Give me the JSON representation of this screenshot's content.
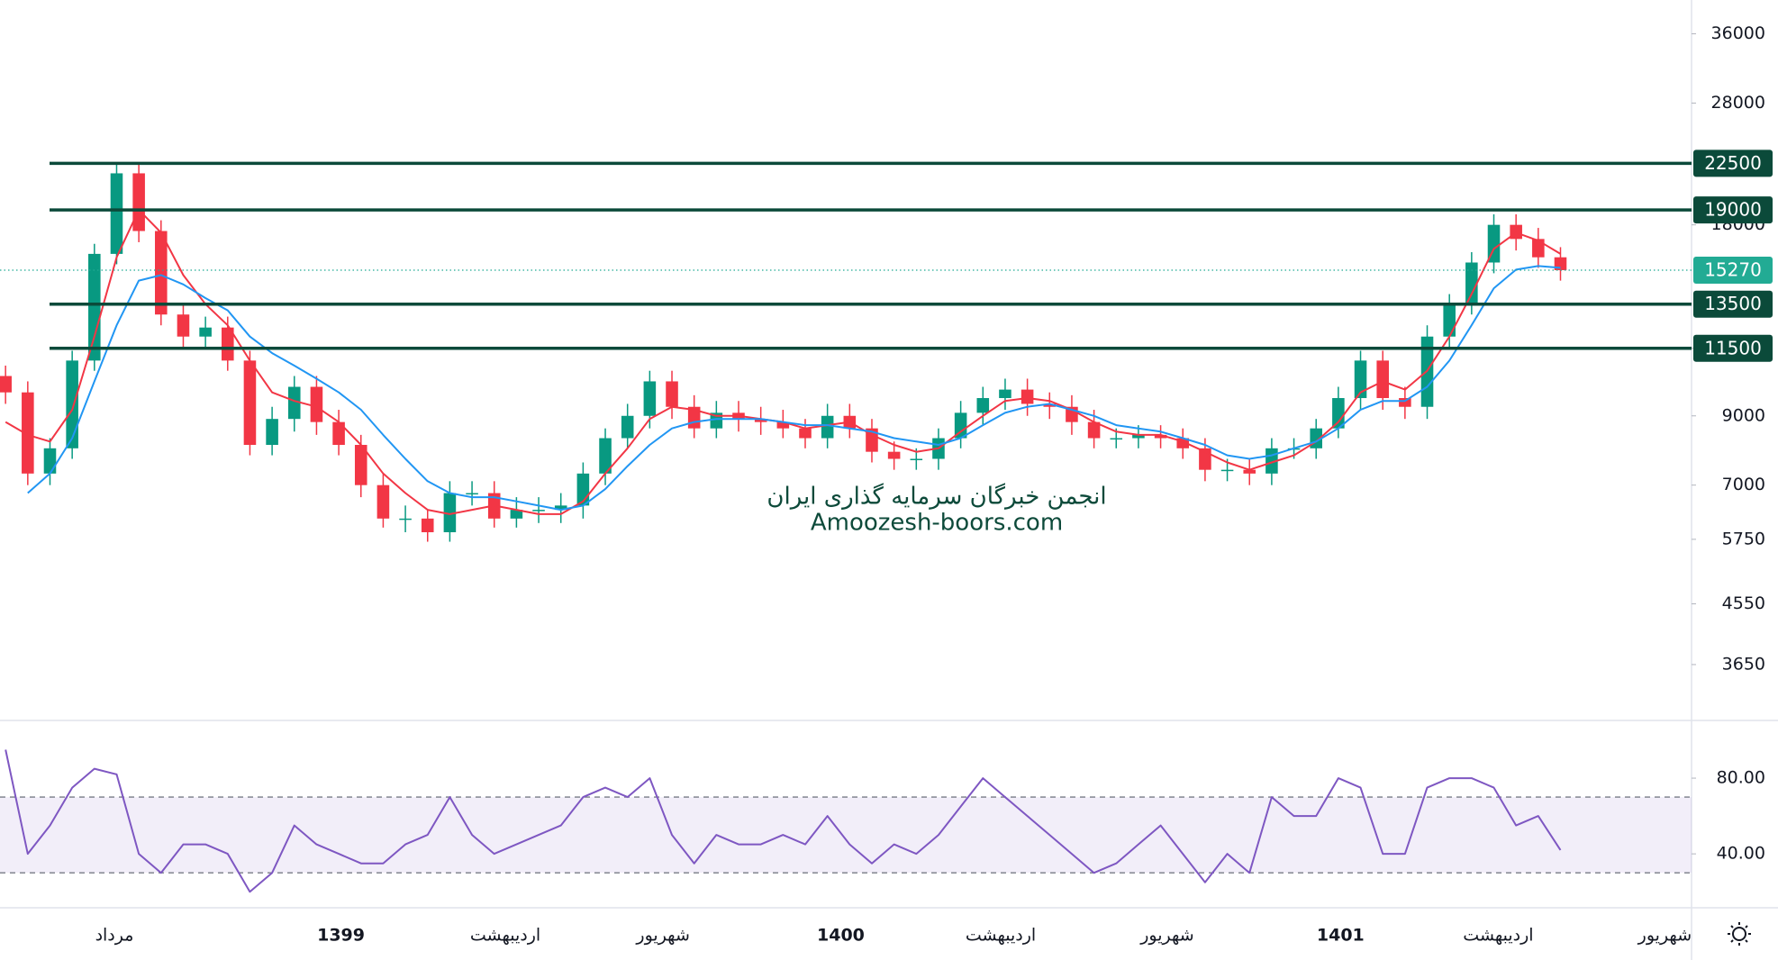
{
  "chart_data": [
    {
      "type": "candlestick",
      "watermark": [
        "انجمن خبرگان سرمایه گذاری ایران",
        "Amoozesh-boors.com"
      ],
      "x": [
        0,
        1,
        2,
        3,
        4,
        5,
        6,
        7,
        8,
        9,
        10,
        11,
        12,
        13,
        14,
        15,
        16,
        17,
        18,
        19,
        20,
        21,
        22,
        23,
        24,
        25,
        26,
        27,
        28,
        29,
        30,
        31,
        32,
        33,
        34,
        35,
        36,
        37,
        38,
        39,
        40,
        41,
        42,
        43,
        44,
        45,
        46,
        47,
        48,
        49,
        50,
        51,
        52,
        53,
        54,
        55,
        56,
        57,
        58,
        59,
        60,
        61,
        62,
        63,
        64,
        65,
        66,
        67,
        68,
        69,
        70
      ],
      "open": [
        10400,
        9800,
        7300,
        8000,
        11000,
        16200,
        21700,
        17600,
        13000,
        12000,
        12400,
        11000,
        8100,
        8900,
        10000,
        8800,
        8100,
        7000,
        6200,
        6200,
        5900,
        6800,
        6800,
        6200,
        6400,
        6400,
        6500,
        7300,
        8300,
        9000,
        10200,
        9300,
        8600,
        9100,
        8900,
        8800,
        8600,
        8300,
        9000,
        8600,
        7900,
        7700,
        7700,
        8300,
        9100,
        9600,
        9900,
        9400,
        9300,
        8800,
        8300,
        8300,
        8400,
        8300,
        8000,
        7400,
        7400,
        7300,
        8000,
        8000,
        8600,
        9600,
        11000,
        9600,
        9300,
        12000,
        13500,
        15700,
        18000,
        17100,
        16000
      ],
      "high": [
        10800,
        10200,
        8300,
        11400,
        16800,
        22500,
        22500,
        18300,
        13500,
        12900,
        12900,
        11400,
        9300,
        10400,
        10400,
        9200,
        8400,
        7300,
        6500,
        6400,
        7100,
        7100,
        7100,
        6700,
        6700,
        6800,
        7600,
        8600,
        9400,
        10600,
        10600,
        9700,
        9500,
        9500,
        9300,
        9200,
        8900,
        9400,
        9400,
        8900,
        8200,
        8000,
        8600,
        9500,
        10000,
        10300,
        10300,
        9800,
        9700,
        9200,
        8600,
        8700,
        8700,
        8600,
        8300,
        7700,
        7700,
        8300,
        8300,
        8900,
        10000,
        11400,
        11400,
        10000,
        12500,
        14000,
        16300,
        18700,
        18700,
        17800,
        16600
      ],
      "low": [
        9400,
        7000,
        7000,
        7700,
        10600,
        15600,
        16900,
        12500,
        11500,
        11500,
        10600,
        7800,
        7800,
        8500,
        8400,
        7800,
        6700,
        6000,
        5900,
        5700,
        5700,
        6500,
        6000,
        6000,
        6100,
        6100,
        6200,
        7000,
        8000,
        8600,
        8900,
        8300,
        8300,
        8500,
        8400,
        8300,
        8000,
        8000,
        8300,
        7600,
        7400,
        7400,
        7400,
        8000,
        8700,
        9200,
        9000,
        8900,
        8400,
        8000,
        8000,
        8000,
        8000,
        7700,
        7100,
        7100,
        7000,
        7000,
        7700,
        7700,
        8300,
        9200,
        9200,
        8900,
        8900,
        11500,
        13000,
        15100,
        16400,
        15400,
        14700
      ],
      "close": [
        9800,
        7300,
        8000,
        11000,
        16200,
        21700,
        17600,
        13000,
        12000,
        12400,
        11000,
        8100,
        8900,
        10000,
        8800,
        8100,
        7000,
        6200,
        6200,
        5900,
        6800,
        6800,
        6200,
        6400,
        6400,
        6500,
        7300,
        8300,
        9000,
        10200,
        9300,
        8600,
        9100,
        8900,
        8800,
        8600,
        8300,
        9000,
        8600,
        7900,
        7700,
        7700,
        8300,
        9100,
        9600,
        9900,
        9400,
        9300,
        8800,
        8300,
        8300,
        8400,
        8300,
        8000,
        7400,
        7400,
        7300,
        8000,
        8000,
        8600,
        9600,
        11000,
        9600,
        9300,
        12000,
        13500,
        15700,
        18000,
        17100,
        16000,
        15270
      ],
      "up_color": "#089981",
      "down_color": "#f23645",
      "series": [
        {
          "color": "#f23645",
          "values": [
            8800,
            8400,
            8200,
            9200,
            12000,
            16000,
            19000,
            17500,
            15000,
            13500,
            12500,
            11000,
            9800,
            9500,
            9300,
            8800,
            8100,
            7300,
            6800,
            6400,
            6300,
            6400,
            6500,
            6400,
            6300,
            6300,
            6600,
            7300,
            8000,
            8900,
            9300,
            9200,
            9000,
            9000,
            8900,
            8800,
            8600,
            8700,
            8800,
            8400,
            8100,
            7900,
            8000,
            8500,
            9000,
            9500,
            9600,
            9500,
            9200,
            8800,
            8500,
            8400,
            8400,
            8200,
            7900,
            7600,
            7400,
            7600,
            7800,
            8200,
            8800,
            9800,
            10200,
            9900,
            10600,
            12000,
            14000,
            16500,
            17500,
            17000,
            16200
          ]
        },
        {
          "color": "#2196f3",
          "values": [
            null,
            6800,
            7300,
            8300,
            10200,
            12500,
            14700,
            15000,
            14500,
            13800,
            13200,
            12000,
            11300,
            10800,
            10300,
            9800,
            9200,
            8400,
            7700,
            7100,
            6800,
            6700,
            6700,
            6600,
            6500,
            6400,
            6500,
            6900,
            7500,
            8100,
            8600,
            8800,
            8900,
            8900,
            8900,
            8800,
            8700,
            8700,
            8600,
            8500,
            8300,
            8200,
            8100,
            8300,
            8700,
            9100,
            9300,
            9400,
            9200,
            9000,
            8700,
            8600,
            8500,
            8300,
            8100,
            7800,
            7700,
            7800,
            8000,
            8200,
            8600,
            9200,
            9500,
            9500,
            10000,
            11000,
            12500,
            14300,
            15300,
            15500,
            15400
          ]
        }
      ],
      "levels": [
        22500,
        19000,
        13500,
        11500
      ],
      "level_color": "#0b4a3a",
      "last_price": 15270,
      "last_color": "#22ab94",
      "log_scale": true,
      "xlim": [
        -0.25,
        75.9
      ],
      "xticks": [
        {
          "value": 4.9,
          "label": "مرداد"
        },
        {
          "value": 15.1,
          "label": "1399"
        },
        {
          "value": 22.5,
          "label": "اردیبهشت"
        },
        {
          "value": 29.6,
          "label": "شهریور"
        },
        {
          "value": 37.6,
          "label": "1400"
        },
        {
          "value": 44.8,
          "label": "اردیبهشت"
        },
        {
          "value": 52.3,
          "label": "شهریور"
        },
        {
          "value": 60.1,
          "label": "1401"
        },
        {
          "value": 67.2,
          "label": "اردیبهشت"
        },
        {
          "value": 74.7,
          "label": "شهریور"
        }
      ],
      "ylim": [
        2980,
        40700
      ],
      "yticks": [
        3650,
        4550,
        5750,
        7000,
        9000,
        11500,
        18000,
        28000,
        36000
      ]
    },
    {
      "type": "line",
      "x": [
        0,
        1,
        2,
        3,
        4,
        5,
        6,
        7,
        8,
        9,
        10,
        11,
        12,
        13,
        14,
        15,
        16,
        17,
        18,
        19,
        20,
        21,
        22,
        23,
        24,
        25,
        26,
        27,
        28,
        29,
        30,
        31,
        32,
        33,
        34,
        35,
        36,
        37,
        38,
        39,
        40,
        41,
        42,
        43,
        44,
        45,
        46,
        47,
        48,
        49,
        50,
        51,
        52,
        53,
        54,
        55,
        56,
        57,
        58,
        59,
        60,
        61,
        62,
        63,
        64,
        65,
        66,
        67,
        68,
        69,
        70
      ],
      "series": [
        {
          "color": "#7e57c2",
          "values": [
            95,
            40,
            55,
            75,
            85,
            82,
            40,
            30,
            45,
            45,
            40,
            20,
            30,
            55,
            45,
            40,
            35,
            35,
            45,
            50,
            70,
            50,
            40,
            45,
            50,
            55,
            70,
            75,
            70,
            80,
            50,
            35,
            50,
            45,
            45,
            50,
            45,
            60,
            45,
            35,
            45,
            40,
            50,
            65,
            80,
            70,
            60,
            50,
            40,
            30,
            35,
            45,
            55,
            40,
            25,
            40,
            30,
            70,
            60,
            60,
            80,
            75,
            40,
            40,
            75,
            80,
            80,
            75,
            55,
            60,
            42
          ]
        }
      ],
      "band": [
        30,
        70
      ],
      "band_color": "#7e57c2",
      "ylim": [
        12,
        110
      ],
      "yticks": [
        {
          "value": 40,
          "label": "40.00"
        },
        {
          "value": 80,
          "label": "80.00"
        }
      ]
    }
  ]
}
